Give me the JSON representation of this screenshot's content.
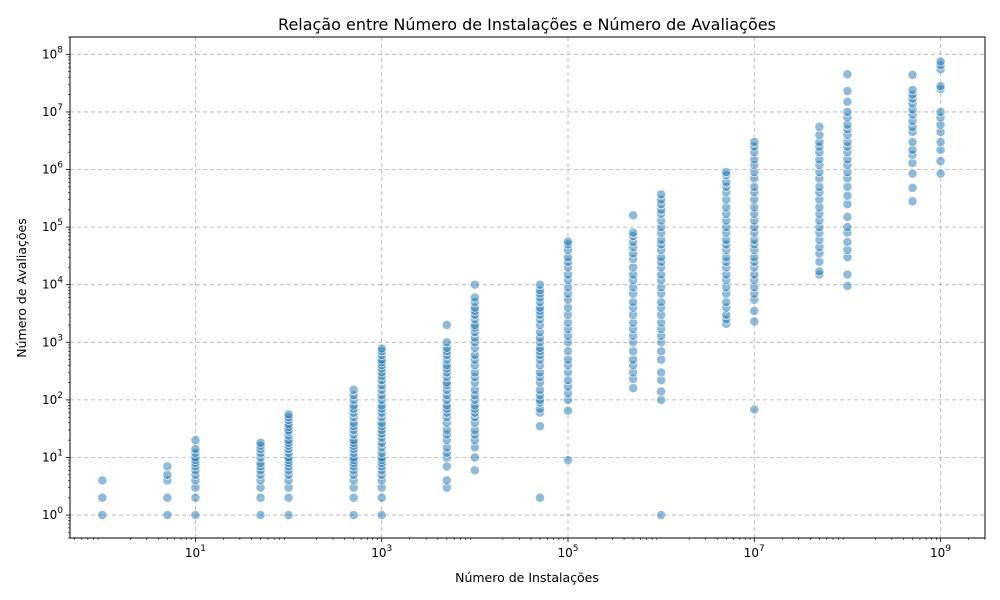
{
  "chart_data": {
    "type": "scatter",
    "title": "Relação entre Número de Instalações e Número de Avaliações",
    "xlabel": "Número de Instalações",
    "ylabel": "Número de Avaliações",
    "xscale": "log",
    "yscale": "log",
    "xlim": [
      0.45,
      3000000000
    ],
    "ylim": [
      0.4,
      200000000
    ],
    "grid": true,
    "x_ticks": [
      {
        "value": 10,
        "base": "10",
        "exp": "1"
      },
      {
        "value": 1000,
        "base": "10",
        "exp": "3"
      },
      {
        "value": 100000,
        "base": "10",
        "exp": "5"
      },
      {
        "value": 10000000,
        "base": "10",
        "exp": "7"
      },
      {
        "value": 1000000000,
        "base": "10",
        "exp": "9"
      }
    ],
    "y_ticks": [
      {
        "value": 1,
        "base": "10",
        "exp": "0"
      },
      {
        "value": 10,
        "base": "10",
        "exp": "1"
      },
      {
        "value": 100,
        "base": "10",
        "exp": "2"
      },
      {
        "value": 1000,
        "base": "10",
        "exp": "3"
      },
      {
        "value": 10000,
        "base": "10",
        "exp": "4"
      },
      {
        "value": 100000,
        "base": "10",
        "exp": "5"
      },
      {
        "value": 1000000,
        "base": "10",
        "exp": "6"
      },
      {
        "value": 10000000,
        "base": "10",
        "exp": "7"
      },
      {
        "value": 100000000,
        "base": "10",
        "exp": "8"
      }
    ],
    "marker_color": "#1f77b4",
    "series": [
      {
        "x": 1,
        "y": [
          1,
          2,
          4
        ]
      },
      {
        "x": 5,
        "y": [
          1,
          2,
          4,
          5,
          7
        ]
      },
      {
        "x": 10,
        "y": [
          1,
          2,
          3,
          4,
          5,
          6,
          7,
          8,
          9,
          10,
          12,
          14,
          20
        ]
      },
      {
        "x": 50,
        "y": [
          1,
          2,
          3,
          4,
          5,
          6,
          7,
          8,
          10,
          12,
          14,
          16,
          18
        ]
      },
      {
        "x": 100,
        "y": [
          1,
          2,
          3,
          4,
          5,
          6,
          7,
          8,
          9,
          10,
          12,
          14,
          16,
          18,
          20,
          24,
          28,
          30,
          34,
          38,
          45,
          50,
          56
        ]
      },
      {
        "x": 500,
        "y": [
          1,
          2,
          3,
          4,
          5,
          6,
          7,
          8,
          9,
          10,
          12,
          14,
          16,
          18,
          20,
          25,
          30,
          35,
          40,
          50,
          60,
          70,
          80,
          100,
          120,
          150
        ]
      },
      {
        "x": 1000,
        "y": [
          1,
          2,
          3,
          4,
          5,
          6,
          7,
          8,
          9,
          10,
          12,
          15,
          18,
          22,
          26,
          30,
          35,
          40,
          50,
          60,
          70,
          80,
          100,
          120,
          150,
          180,
          220,
          260,
          300,
          350,
          400,
          450,
          500,
          600,
          700,
          780
        ]
      },
      {
        "x": 5000,
        "y": [
          3,
          4,
          7,
          10,
          12,
          15,
          20,
          25,
          30,
          40,
          50,
          60,
          70,
          80,
          100,
          120,
          150,
          180,
          200,
          250,
          300,
          350,
          400,
          500,
          600,
          700,
          800,
          1000,
          2000
        ]
      },
      {
        "x": 10000,
        "y": [
          6,
          10,
          15,
          20,
          25,
          30,
          40,
          50,
          60,
          70,
          80,
          100,
          120,
          150,
          200,
          250,
          300,
          400,
          500,
          600,
          800,
          1000,
          1200,
          1500,
          1800,
          2000,
          2500,
          3000,
          3500,
          4000,
          5000,
          6000,
          10000
        ]
      },
      {
        "x": 50000,
        "y": [
          2,
          35,
          60,
          70,
          90,
          100,
          120,
          150,
          200,
          250,
          300,
          400,
          500,
          600,
          700,
          800,
          1000,
          1200,
          1500,
          2000,
          2500,
          3000,
          3500,
          4000,
          5000,
          6000,
          7000,
          8000,
          10000
        ]
      },
      {
        "x": 100000,
        "y": [
          9,
          65,
          100,
          130,
          170,
          220,
          300,
          400,
          500,
          700,
          1000,
          1300,
          1700,
          2200,
          3000,
          4000,
          5500,
          7000,
          9000,
          12000,
          15000,
          20000,
          25000,
          30000,
          40000,
          50000,
          56000
        ]
      },
      {
        "x": 500000,
        "y": [
          160,
          230,
          300,
          400,
          500,
          700,
          1000,
          1300,
          1700,
          2200,
          3000,
          4000,
          5000,
          7000,
          9000,
          12000,
          15000,
          20000,
          28000,
          35000,
          45000,
          55000,
          70000,
          80000,
          160000
        ]
      },
      {
        "x": 1000000,
        "y": [
          1,
          100,
          140,
          220,
          300,
          500,
          700,
          1000,
          1300,
          1700,
          2200,
          3000,
          4000,
          5000,
          7000,
          9000,
          12000,
          15000,
          20000,
          25000,
          30000,
          40000,
          50000,
          60000,
          80000,
          100000,
          130000,
          170000,
          200000,
          250000,
          300000,
          370000
        ]
      },
      {
        "x": 5000000,
        "y": [
          2100,
          2500,
          3000,
          4000,
          5000,
          7000,
          9000,
          12000,
          15000,
          20000,
          25000,
          30000,
          40000,
          50000,
          60000,
          80000,
          100000,
          130000,
          170000,
          220000,
          300000,
          400000,
          500000,
          600000,
          800000,
          900000
        ]
      },
      {
        "x": 10000000,
        "y": [
          68,
          2300,
          3500,
          5500,
          7000,
          9000,
          12000,
          15000,
          20000,
          25000,
          30000,
          40000,
          50000,
          60000,
          80000,
          100000,
          130000,
          170000,
          220000,
          300000,
          400000,
          500000,
          700000,
          900000,
          1200000,
          1500000,
          2000000,
          2500000,
          3000000
        ]
      },
      {
        "x": 50000000,
        "y": [
          15000,
          17000,
          25000,
          35000,
          45000,
          60000,
          80000,
          100000,
          130000,
          170000,
          220000,
          300000,
          400000,
          500000,
          700000,
          900000,
          1200000,
          1500000,
          2000000,
          2500000,
          3000000,
          4000000,
          5500000
        ]
      },
      {
        "x": 100000000,
        "y": [
          9500,
          15000,
          30000,
          40000,
          55000,
          80000,
          100000,
          150000,
          250000,
          350000,
          500000,
          700000,
          900000,
          1200000,
          1500000,
          2000000,
          2500000,
          3000000,
          4000000,
          5000000,
          6000000,
          8000000,
          10000000,
          15000000,
          23000000,
          45000000
        ]
      },
      {
        "x": 500000000,
        "y": [
          280000,
          480000,
          850000,
          1300000,
          1800000,
          2200000,
          3000000,
          4500000,
          5500000,
          7000000,
          9000000,
          11000000,
          14000000,
          17000000,
          20000000,
          24000000,
          44000000
        ]
      },
      {
        "x": 1000000000,
        "y": [
          850000,
          1400000,
          2200000,
          3000000,
          4500000,
          6000000,
          8000000,
          10000000,
          25000000,
          28000000,
          55000000,
          65000000,
          75000000
        ]
      }
    ]
  }
}
